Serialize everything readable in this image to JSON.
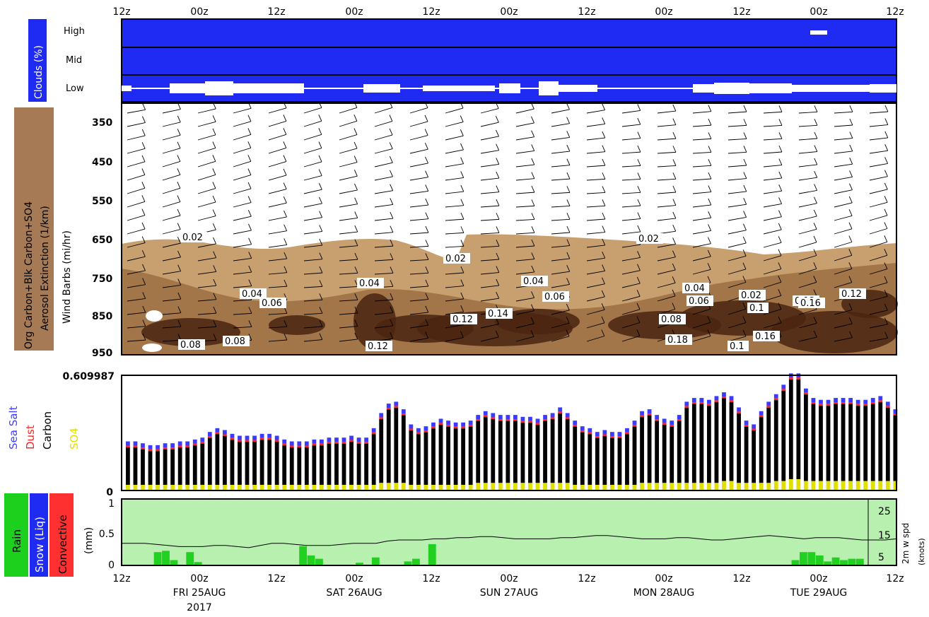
{
  "colors": {
    "cloud_bg": "#1f2bf2",
    "cloud_white": "#ffffff",
    "aerosol_light": "#c8a070",
    "aerosol_mid": "#8a5a2e",
    "aerosol_dark": "#4a2410",
    "sea_salt": "#3b3bff",
    "dust": "#ff2020",
    "carbon": "#000000",
    "so4": "#e0e000",
    "rain": "#1ed01e",
    "snow": "#1f2bf2",
    "convective": "#ff3030",
    "precip_bg": "#b8f0b0",
    "precip_bar": "#22d022",
    "side_label_brown": "#a57a55"
  },
  "time_axis": {
    "top_ticks": [
      "12z",
      "00z",
      "12z",
      "00z",
      "12z",
      "00z",
      "12z",
      "00z",
      "12z",
      "00z",
      "12z"
    ],
    "bottom_ticks": [
      "12z",
      "00z",
      "12z",
      "00z",
      "12z",
      "00z",
      "12z",
      "00z",
      "12z",
      "00z",
      "12z"
    ],
    "day_labels": [
      "FRI 25AUG",
      "SAT 26AUG",
      "SUN 27AUG",
      "MON 28AUG",
      "TUE 29AUG"
    ],
    "year_label": "2017"
  },
  "clouds_panel": {
    "side_label": "Clouds (%)",
    "rows": [
      "High",
      "Mid",
      "Low"
    ]
  },
  "aerosol_panel": {
    "side_label_line1": "Org Carbon+Blk Carbon+SO4",
    "side_label_line2": "Aerosol Extinction (1/km)",
    "axis_label": "Wind Barbs (mi/hr)",
    "pressure_ticks": [
      "350",
      "450",
      "550",
      "650",
      "750",
      "850",
      "950"
    ],
    "contour_labels": [
      "0.02",
      "0.02",
      "0.02",
      "0.04",
      "0.04",
      "0.04",
      "0.06",
      "0.06",
      "0.08",
      "0.08",
      "0.1",
      "0.12",
      "0.12",
      "0.14",
      "0.16",
      "0.18",
      "0.04",
      "0.06",
      "0.02",
      "0.08",
      "0.12",
      "0.1",
      "0.16",
      "0.12"
    ]
  },
  "aerosol_bars_panel": {
    "ymax_label": "0.609987",
    "ymin_label": "0",
    "legend": [
      "Sea Salt",
      "Dust",
      "Carbon",
      "SO4"
    ]
  },
  "precip_panel": {
    "legend": [
      "Rain",
      "Snow (Liq)",
      "Convective"
    ],
    "y_unit": "(mm)",
    "y_ticks": [
      "1",
      "0.5",
      "0"
    ],
    "right_ticks": [
      "25",
      "15",
      "5"
    ],
    "right_label": "2m w spd",
    "right_unit": "(knots)"
  },
  "chart_data": [
    {
      "type": "heatmap",
      "title": "Clouds (%)",
      "rows": [
        "High",
        "Mid",
        "Low"
      ],
      "note": "cloud fraction near 100% throughout except gaps in low cloud"
    },
    {
      "type": "heatmap",
      "title": "Org Carbon+Blk Carbon+SO4 Aerosol Extinction (1/km)",
      "ylabel": "Wind Barbs (mi/hr)",
      "y_ticks": [
        350,
        450,
        550,
        650,
        750,
        850,
        950
      ],
      "contour_values": [
        0.02,
        0.04,
        0.06,
        0.08,
        0.1,
        0.12,
        0.14,
        0.16,
        0.18
      ]
    },
    {
      "type": "bar",
      "ylim": [
        0,
        0.609987
      ],
      "series_names": [
        "Sea Salt",
        "Dust",
        "Carbon",
        "SO4"
      ],
      "totals": [
        0.26,
        0.26,
        0.25,
        0.24,
        0.24,
        0.25,
        0.25,
        0.26,
        0.26,
        0.27,
        0.28,
        0.31,
        0.33,
        0.32,
        0.3,
        0.29,
        0.29,
        0.29,
        0.3,
        0.3,
        0.29,
        0.27,
        0.26,
        0.26,
        0.26,
        0.27,
        0.27,
        0.28,
        0.28,
        0.28,
        0.29,
        0.28,
        0.28,
        0.33,
        0.41,
        0.46,
        0.47,
        0.43,
        0.35,
        0.33,
        0.34,
        0.36,
        0.38,
        0.37,
        0.36,
        0.36,
        0.37,
        0.4,
        0.42,
        0.41,
        0.4,
        0.4,
        0.4,
        0.39,
        0.39,
        0.38,
        0.4,
        0.41,
        0.44,
        0.41,
        0.37,
        0.34,
        0.33,
        0.31,
        0.32,
        0.31,
        0.31,
        0.33,
        0.37,
        0.42,
        0.43,
        0.4,
        0.38,
        0.37,
        0.4,
        0.47,
        0.49,
        0.49,
        0.48,
        0.5,
        0.52,
        0.5,
        0.44,
        0.37,
        0.35,
        0.42,
        0.47,
        0.51,
        0.56,
        0.62,
        0.62,
        0.54,
        0.49,
        0.48,
        0.48,
        0.49,
        0.49,
        0.49,
        0.48,
        0.48,
        0.49,
        0.5,
        0.47,
        0.43
      ],
      "so4_values": [
        0.03,
        0.03,
        0.03,
        0.03,
        0.03,
        0.03,
        0.03,
        0.03,
        0.03,
        0.03,
        0.03,
        0.03,
        0.03,
        0.03,
        0.03,
        0.03,
        0.03,
        0.03,
        0.03,
        0.03,
        0.03,
        0.03,
        0.03,
        0.03,
        0.03,
        0.03,
        0.03,
        0.03,
        0.03,
        0.03,
        0.03,
        0.03,
        0.03,
        0.03,
        0.04,
        0.04,
        0.04,
        0.04,
        0.03,
        0.03,
        0.03,
        0.03,
        0.03,
        0.03,
        0.03,
        0.03,
        0.03,
        0.04,
        0.04,
        0.04,
        0.04,
        0.04,
        0.04,
        0.04,
        0.04,
        0.04,
        0.04,
        0.04,
        0.04,
        0.04,
        0.03,
        0.03,
        0.03,
        0.03,
        0.03,
        0.03,
        0.03,
        0.03,
        0.03,
        0.04,
        0.04,
        0.04,
        0.04,
        0.04,
        0.04,
        0.04,
        0.04,
        0.04,
        0.04,
        0.04,
        0.05,
        0.05,
        0.04,
        0.04,
        0.04,
        0.04,
        0.04,
        0.05,
        0.05,
        0.06,
        0.06,
        0.05,
        0.05,
        0.05,
        0.05,
        0.05,
        0.05,
        0.05,
        0.05,
        0.05,
        0.05,
        0.05,
        0.05,
        0.05
      ]
    },
    {
      "type": "bar",
      "ylim": [
        0,
        1
      ],
      "ylabel": "(mm)",
      "y2label": "2m w spd (knots)",
      "rain_values": [
        0.0,
        0.0,
        0.0,
        0.0,
        0.2,
        0.22,
        0.08,
        0.0,
        0.2,
        0.05,
        0.0,
        0.0,
        0.0,
        0.0,
        0.0,
        0.0,
        0.0,
        0.0,
        0.0,
        0.0,
        0.0,
        0.0,
        0.29,
        0.15,
        0.1,
        0.0,
        0.0,
        0.0,
        0.0,
        0.04,
        0.0,
        0.12,
        0.0,
        0.0,
        0.0,
        0.06,
        0.1,
        0.0,
        0.32,
        0.0,
        0.0,
        0.0,
        0.0,
        0.0,
        0.0,
        0.0,
        0.0,
        0.0,
        0.0,
        0.0,
        0.0,
        0.0,
        0.0,
        0.0,
        0.0,
        0.0,
        0.0,
        0.0,
        0.0,
        0.0,
        0.0,
        0.0,
        0.0,
        0.0,
        0.0,
        0.0,
        0.0,
        0.0,
        0.0,
        0.0,
        0.0,
        0.0,
        0.0,
        0.0,
        0.0,
        0.0,
        0.0,
        0.0,
        0.0,
        0.0,
        0.0,
        0.0,
        0.0,
        0.08,
        0.2,
        0.2,
        0.15,
        0.06,
        0.12,
        0.08,
        0.1,
        0.1,
        0.0,
        0.0,
        0.0,
        0.0
      ],
      "wind_speed_knots": [
        10,
        10,
        10,
        9.5,
        9,
        8.5,
        8.5,
        8.5,
        9,
        9,
        8.5,
        8,
        9,
        10,
        10,
        9.5,
        9,
        9,
        9,
        9.5,
        10,
        10,
        10,
        11,
        11.5,
        11.5,
        11.5,
        12,
        12,
        12.5,
        12.5,
        13,
        13,
        12.5,
        12,
        12,
        12,
        12,
        12.5,
        12.5,
        13,
        13.5,
        13.5,
        13,
        12.5,
        12,
        12,
        12,
        12.5,
        12.5,
        12,
        11.5,
        11.5,
        12,
        12.5,
        13,
        13.5,
        13,
        12.5,
        12,
        12.5,
        12.5,
        12.5,
        12,
        11.5,
        11.5,
        11.5,
        12
      ]
    }
  ]
}
